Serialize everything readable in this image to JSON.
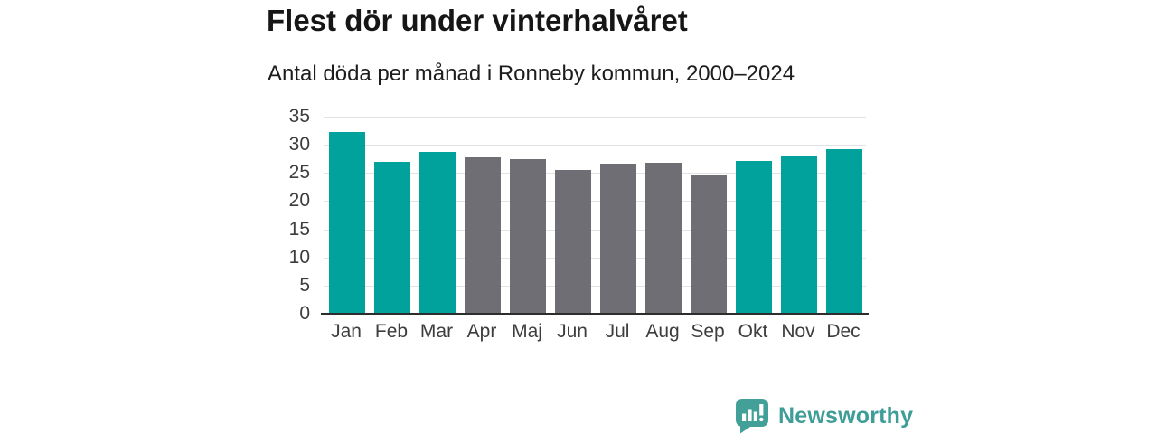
{
  "header": {
    "title": "Flest dör under vinterhalvåret",
    "subtitle": "Antal döda per månad i Ronneby kommun, 2000–2024"
  },
  "chart_data": {
    "type": "bar",
    "title": "Flest dör under vinterhalvåret",
    "subtitle": "Antal döda per månad i Ronneby kommun, 2000–2024",
    "categories": [
      "Jan",
      "Feb",
      "Mar",
      "Apr",
      "Maj",
      "Jun",
      "Jul",
      "Aug",
      "Sep",
      "Okt",
      "Nov",
      "Dec"
    ],
    "values": [
      32.3,
      27.0,
      28.7,
      27.7,
      27.5,
      25.5,
      26.7,
      26.8,
      24.8,
      27.1,
      28.1,
      29.3
    ],
    "highlighted_categories": [
      "Jan",
      "Feb",
      "Mar",
      "Okt",
      "Nov",
      "Dec"
    ],
    "xlabel": "",
    "ylabel": "",
    "ylim": [
      0,
      35
    ],
    "yticks": [
      0,
      5,
      10,
      15,
      20,
      25,
      30,
      35
    ],
    "grid": true,
    "legend": false,
    "colors": {
      "highlight_bar": "#00a29b",
      "base_bar": "#6f6e74",
      "gridline": "#e2e2e2",
      "axis_line": "#2d2d2d",
      "tick_label": "#3d3d3d"
    }
  },
  "footer": {
    "brand": "Newsworthy",
    "logo_icon": "speech-bubble-bar-chart-icon",
    "brand_color": "#3f9d98",
    "logo_color": "#43a099"
  }
}
